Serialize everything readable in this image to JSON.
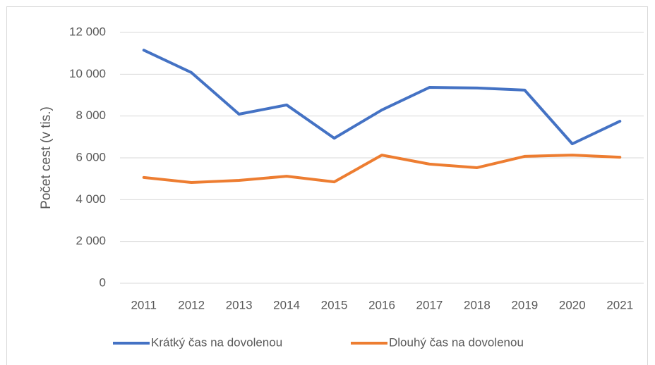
{
  "chart_data": {
    "type": "line",
    "y_label": "Počet cest (v tis.)",
    "categories": [
      "2011",
      "2012",
      "2013",
      "2014",
      "2015",
      "2016",
      "2017",
      "2018",
      "2019",
      "2020",
      "2021"
    ],
    "series": [
      {
        "name": "Krátký čas na dovolenou",
        "color": "#4472c4",
        "values": [
          11150,
          10080,
          8090,
          8530,
          6940,
          8290,
          9370,
          9340,
          9240,
          6670,
          7750
        ]
      },
      {
        "name": "Dlouhý čas na dovolenou",
        "color": "#ed7d31",
        "values": [
          5060,
          4820,
          4920,
          5120,
          4850,
          6130,
          5700,
          5530,
          6070,
          6130,
          6030
        ]
      }
    ],
    "ylim": [
      0,
      12000
    ],
    "yticks": [
      0,
      {
        "value": 2000,
        "label": "2 000"
      },
      {
        "value": 4000,
        "label": "4 000"
      },
      {
        "value": 6000,
        "label": "6 000"
      },
      {
        "value": 8000,
        "label": "8 000"
      },
      {
        "value": 10000,
        "label": "10 000"
      },
      {
        "value": 12000,
        "label": "12 000"
      }
    ],
    "grid": true,
    "legend": "bottom"
  }
}
